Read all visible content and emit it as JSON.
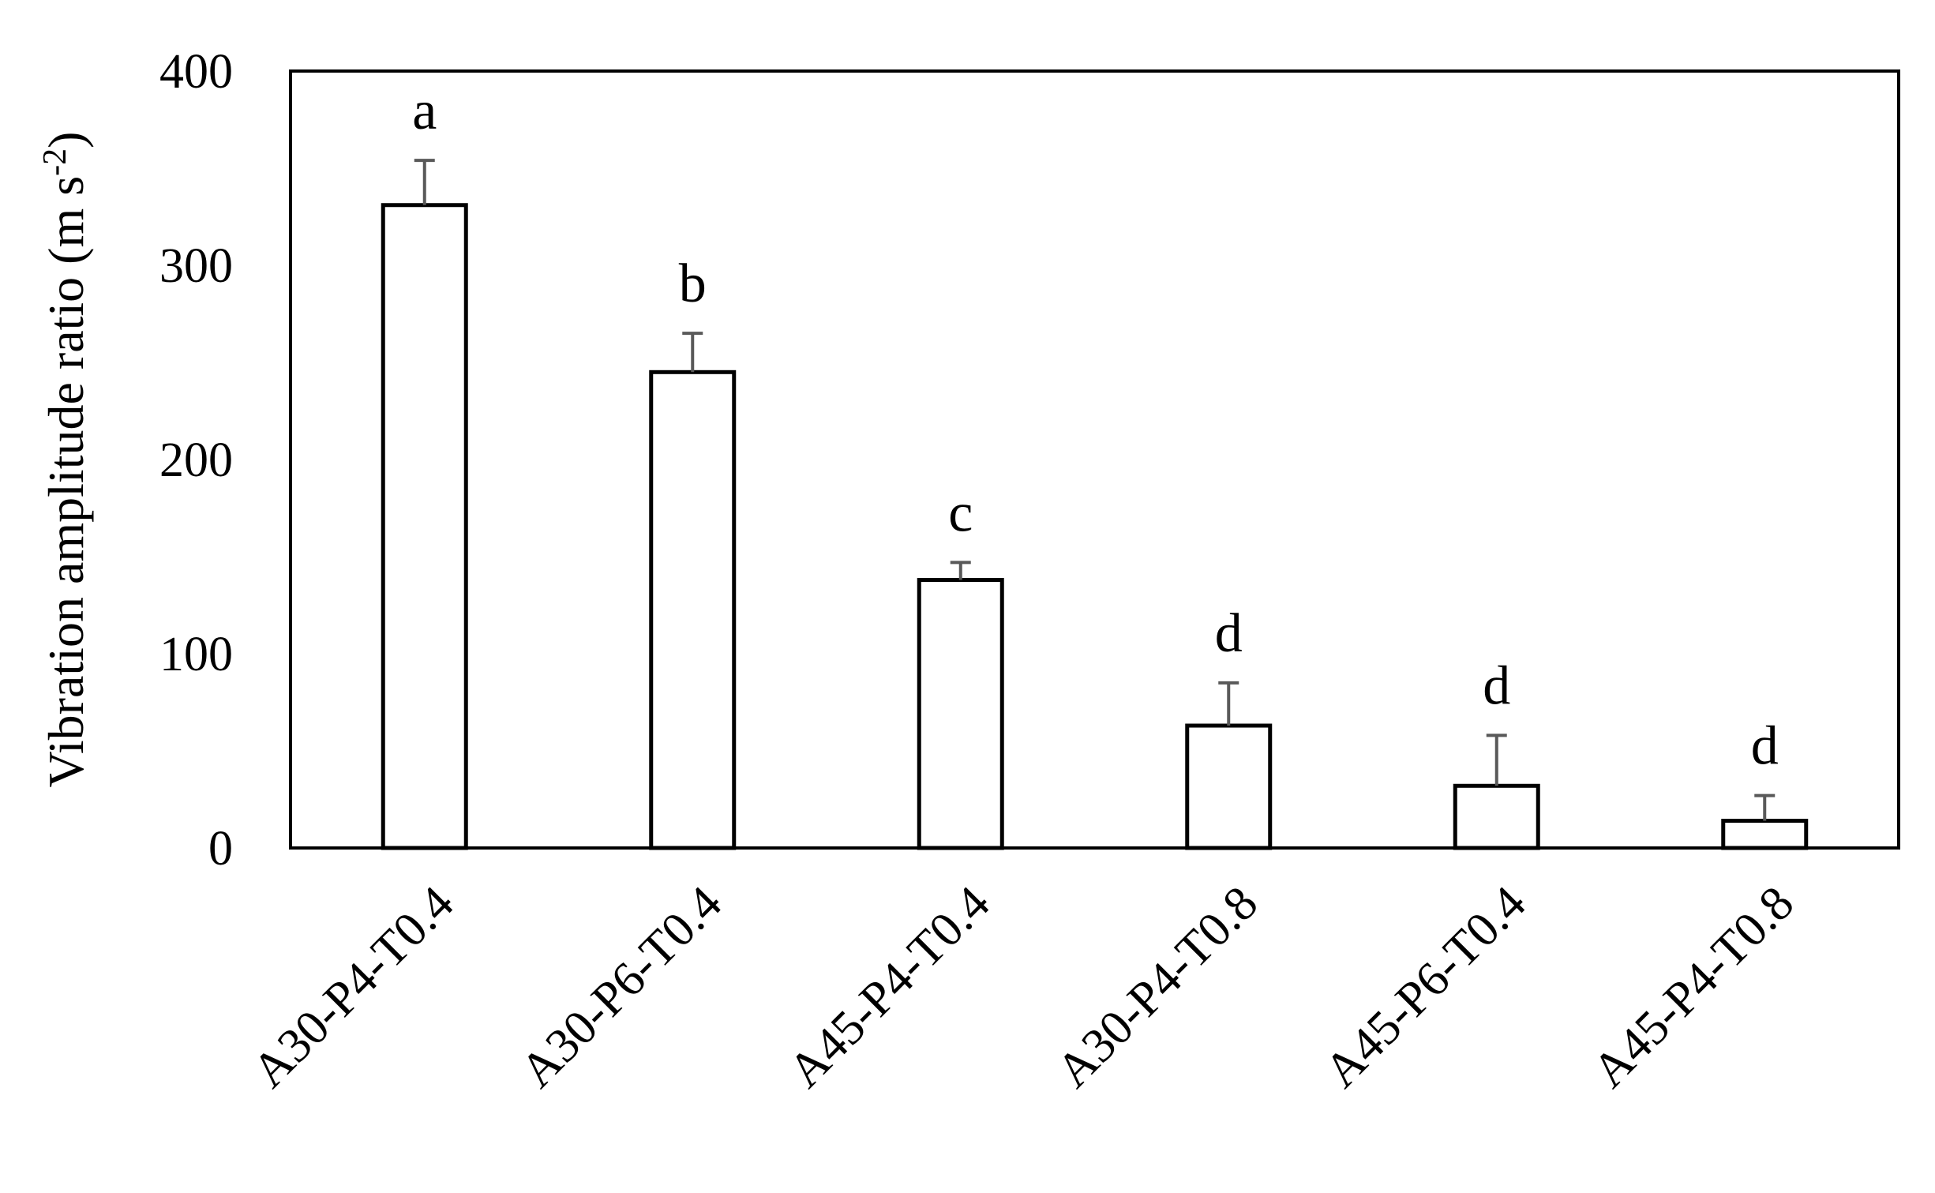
{
  "chart_data": {
    "type": "bar",
    "categories": [
      "A30-P4-T0.4",
      "A30-P6-T0.4",
      "A45-P4-T0.4",
      "A30-P4-T0.8",
      "A45-P6-T0.4",
      "A45-P4-T0.8"
    ],
    "values": [
      331,
      245,
      138,
      63,
      32,
      14
    ],
    "error_plus": [
      23,
      20,
      9,
      22,
      26,
      13
    ],
    "significance_letters": [
      "a",
      "b",
      "c",
      "d",
      "d",
      "d"
    ],
    "title": "",
    "xlabel": "",
    "ylabel": "Vibration amplitude ratio (m s",
    "ylabel_superscript": "-2",
    "ylabel_suffix": ")",
    "ylim": [
      0,
      400
    ],
    "yticks": [
      0,
      100,
      200,
      300,
      400
    ],
    "grid": false,
    "legend": "none",
    "bar_fill": "#ffffff",
    "bar_stroke": "#000000",
    "error_bar_color": "#595959"
  }
}
